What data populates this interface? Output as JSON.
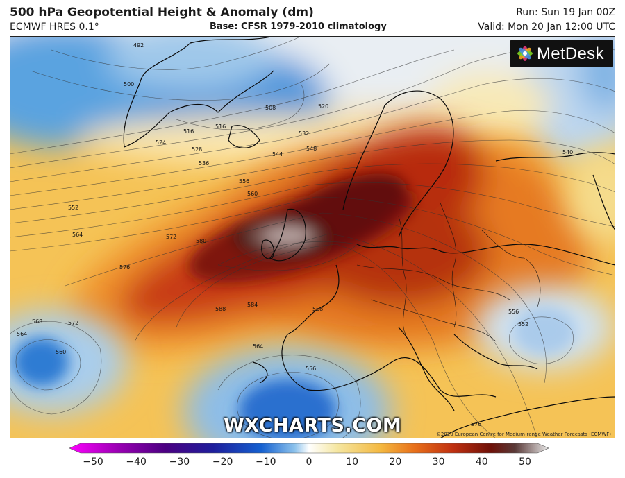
{
  "header": {
    "title": "500 hPa Geopotential Height & Anomaly (dm)",
    "model": "ECMWF HRES 0.1°",
    "base": "Base: CFSR 1979-2010 climatology",
    "run": "Run: Sun 19 Jan 00Z",
    "valid": "Valid: Mon 20 Jan 12:00 UTC"
  },
  "logo": {
    "text": "MetDesk"
  },
  "watermark": "WXCHARTS.COM",
  "copyright": "©2020 European Centre for Medium-range Weather Forecasts (ECMWF)",
  "colorbar": {
    "ticks": [
      "−50",
      "−40",
      "−30",
      "−20",
      "−10",
      "0",
      "10",
      "20",
      "30",
      "40",
      "50"
    ],
    "colors": [
      "#ff00ff",
      "#9b00b4",
      "#4b0082",
      "#1e1e9c",
      "#1560d0",
      "#7ab8ea",
      "#ffffff",
      "#f5e6a0",
      "#f4b840",
      "#e8701a",
      "#c03010",
      "#6e1008",
      "#5a3a38",
      "#e0e0e0"
    ]
  },
  "contour_labels": [
    "492",
    "500",
    "508",
    "516",
    "520",
    "524",
    "528",
    "532",
    "536",
    "540",
    "544",
    "548",
    "552",
    "556",
    "560",
    "564",
    "568",
    "572",
    "576",
    "580",
    "584",
    "588"
  ],
  "colors": {
    "ocean_base": "#f7c25a",
    "ridge": "#b2230e",
    "ridge_core": "#5b0f06",
    "cut_off_low": "#2b6fcf"
  }
}
